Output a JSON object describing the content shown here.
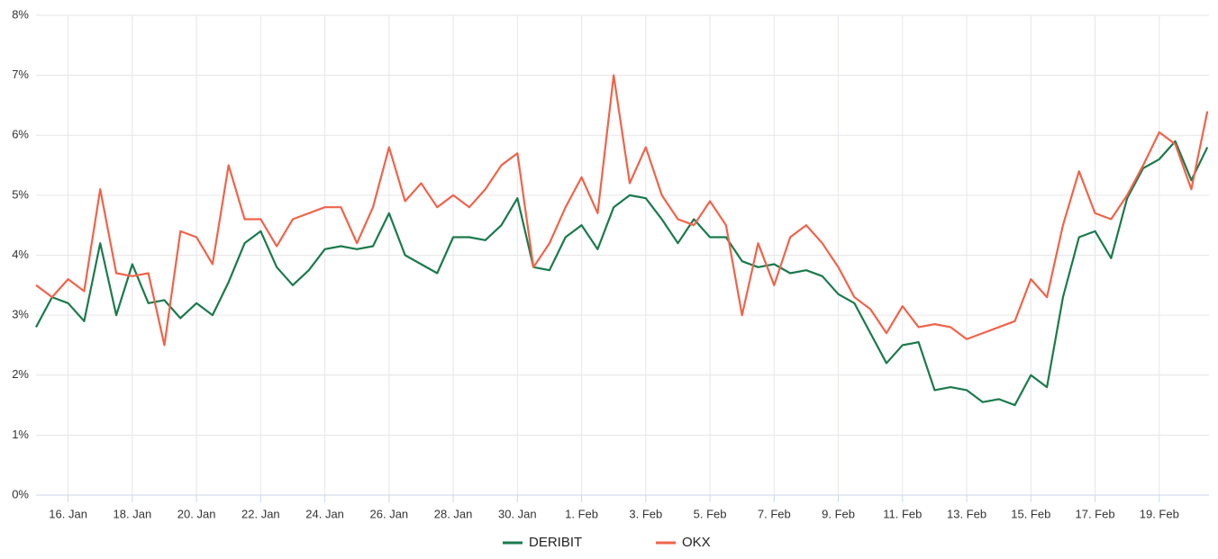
{
  "chart_data": {
    "type": "line",
    "x": [
      15,
      15.5,
      16,
      16.5,
      17,
      17.5,
      18,
      18.5,
      19,
      19.5,
      20,
      20.5,
      21,
      21.5,
      22,
      22.5,
      23,
      23.5,
      24,
      24.5,
      25,
      25.5,
      26,
      26.5,
      27,
      27.5,
      28,
      28.5,
      29,
      29.5,
      30,
      30.5,
      31,
      31.5,
      32,
      32.5,
      33,
      33.5,
      34,
      34.5,
      35,
      35.5,
      36,
      36.5,
      37,
      37.5,
      38,
      38.5,
      39,
      39.5,
      40,
      40.5,
      41,
      41.5,
      42,
      42.5,
      43,
      43.5,
      44,
      44.5,
      45,
      45.5,
      46,
      46.5,
      47,
      47.5,
      48,
      48.5,
      49,
      49.5,
      50,
      50.5,
      51,
      51.5
    ],
    "series": [
      {
        "name": "DERIBIT",
        "color": "#1a7a4c",
        "values": [
          2.8,
          3.3,
          3.2,
          2.9,
          4.2,
          3.0,
          3.85,
          3.2,
          3.25,
          2.95,
          3.2,
          3.0,
          3.55,
          4.2,
          4.4,
          3.8,
          3.5,
          3.75,
          4.1,
          4.15,
          4.1,
          4.15,
          4.7,
          4.0,
          3.85,
          3.7,
          4.3,
          4.3,
          4.25,
          4.5,
          4.95,
          3.8,
          3.75,
          4.3,
          4.5,
          4.1,
          4.8,
          5.0,
          4.95,
          4.6,
          4.2,
          4.6,
          4.3,
          4.3,
          3.9,
          3.8,
          3.85,
          3.7,
          3.75,
          3.65,
          3.35,
          3.2,
          2.7,
          2.2,
          2.5,
          2.55,
          1.75,
          1.8,
          1.75,
          1.55,
          1.6,
          1.5,
          2.0,
          1.8,
          3.3,
          4.3,
          4.4,
          3.95,
          4.95,
          5.45,
          5.6,
          5.9,
          5.25,
          5.8
        ]
      },
      {
        "name": "OKX",
        "color": "#f0634a",
        "values": [
          3.5,
          3.3,
          3.6,
          3.4,
          5.1,
          3.7,
          3.65,
          3.7,
          2.5,
          4.4,
          4.3,
          3.85,
          5.5,
          4.6,
          4.6,
          4.15,
          4.6,
          4.7,
          4.8,
          4.8,
          4.2,
          4.8,
          5.8,
          4.9,
          5.2,
          4.8,
          5.0,
          4.8,
          5.1,
          5.5,
          5.7,
          3.8,
          4.2,
          4.8,
          5.3,
          4.7,
          7.0,
          5.2,
          5.8,
          5.0,
          4.6,
          4.5,
          4.9,
          4.5,
          3.0,
          4.2,
          3.5,
          4.3,
          4.5,
          4.2,
          3.8,
          3.3,
          3.1,
          2.7,
          3.15,
          2.8,
          2.85,
          2.8,
          2.6,
          2.7,
          2.8,
          2.9,
          3.6,
          3.3,
          4.5,
          5.4,
          4.7,
          4.6,
          5.0,
          5.5,
          6.05,
          5.85,
          5.1,
          6.4
        ]
      }
    ],
    "xlim": [
      15,
      51.55
    ],
    "xticks": [
      {
        "value": 16,
        "label": "16. Jan"
      },
      {
        "value": 18,
        "label": "18. Jan"
      },
      {
        "value": 20,
        "label": "20. Jan"
      },
      {
        "value": 22,
        "label": "22. Jan"
      },
      {
        "value": 24,
        "label": "24. Jan"
      },
      {
        "value": 26,
        "label": "26. Jan"
      },
      {
        "value": 28,
        "label": "28. Jan"
      },
      {
        "value": 30,
        "label": "30. Jan"
      },
      {
        "value": 32,
        "label": "1. Feb"
      },
      {
        "value": 34,
        "label": "3. Feb"
      },
      {
        "value": 36,
        "label": "5. Feb"
      },
      {
        "value": 38,
        "label": "7. Feb"
      },
      {
        "value": 40,
        "label": "9. Feb"
      },
      {
        "value": 42,
        "label": "11. Feb"
      },
      {
        "value": 44,
        "label": "13. Feb"
      },
      {
        "value": 46,
        "label": "15. Feb"
      },
      {
        "value": 48,
        "label": "17. Feb"
      },
      {
        "value": 50,
        "label": "19. Feb"
      }
    ],
    "ylim": [
      0,
      8
    ],
    "yticks": [
      {
        "value": 0,
        "label": "0%"
      },
      {
        "value": 1,
        "label": "1%"
      },
      {
        "value": 2,
        "label": "2%"
      },
      {
        "value": 3,
        "label": "3%"
      },
      {
        "value": 4,
        "label": "4%"
      },
      {
        "value": 5,
        "label": "5%"
      },
      {
        "value": 6,
        "label": "6%"
      },
      {
        "value": 7,
        "label": "7%"
      },
      {
        "value": 8,
        "label": "8%"
      }
    ],
    "grid": true,
    "legend": "bottom"
  }
}
